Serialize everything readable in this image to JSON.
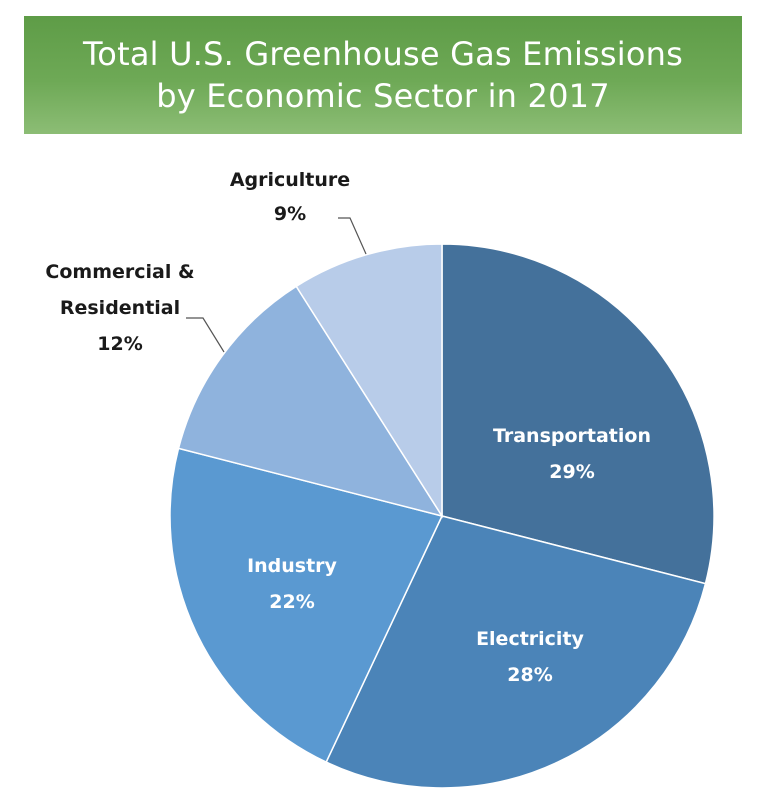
{
  "title": {
    "line1": "Total U.S. Greenhouse Gas Emissions",
    "line2": "by Economic Sector in 2017"
  },
  "chart_data": {
    "type": "pie",
    "title": "Total U.S. Greenhouse Gas Emissions by Economic Sector in 2017",
    "slices": [
      {
        "label": [
          "Transportation"
        ],
        "percent_label": "29%",
        "value": 29,
        "color": "#44719b",
        "label_placement": "inside"
      },
      {
        "label": [
          "Electricity"
        ],
        "percent_label": "28%",
        "value": 28,
        "color": "#4b84b8",
        "label_placement": "inside"
      },
      {
        "label": [
          "Industry"
        ],
        "percent_label": "22%",
        "value": 22,
        "color": "#5a99d1",
        "label_placement": "inside"
      },
      {
        "label": [
          "Commercial &",
          "Residential"
        ],
        "percent_label": "12%",
        "value": 12,
        "color": "#8fb3dd",
        "label_placement": "outside"
      },
      {
        "label": [
          "Agriculture"
        ],
        "percent_label": "9%",
        "value": 9,
        "color": "#b8cce9",
        "label_placement": "outside"
      }
    ]
  }
}
